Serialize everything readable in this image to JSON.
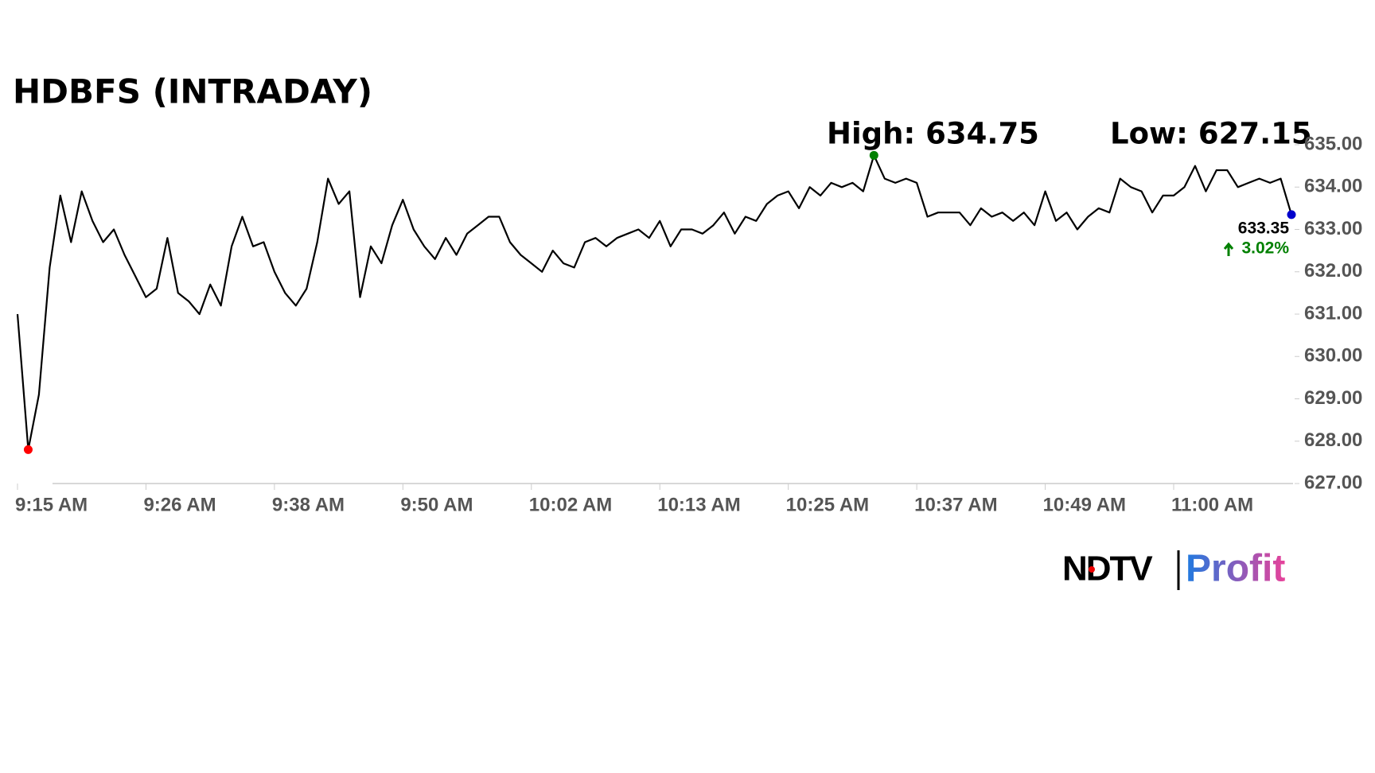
{
  "chart_data": {
    "type": "line",
    "title": "HDBFS (INTRADAY)",
    "categories": [
      "9:15 AM",
      null,
      null,
      null,
      null,
      null,
      null,
      null,
      null,
      null,
      null,
      null,
      "9:26 AM",
      null,
      null,
      null,
      null,
      null,
      null,
      null,
      null,
      null,
      null,
      null,
      "9:38 AM",
      null,
      null,
      null,
      null,
      null,
      null,
      null,
      null,
      null,
      null,
      null,
      "9:50 AM",
      null,
      null,
      null,
      null,
      null,
      null,
      null,
      null,
      null,
      null,
      null,
      "10:02 AM",
      null,
      null,
      null,
      null,
      null,
      null,
      null,
      null,
      null,
      null,
      null,
      "10:13 AM",
      null,
      null,
      null,
      null,
      null,
      null,
      null,
      null,
      null,
      null,
      null,
      "10:25 AM",
      null,
      null,
      null,
      null,
      null,
      null,
      null,
      null,
      null,
      null,
      null,
      "10:37 AM",
      null,
      null,
      null,
      null,
      null,
      null,
      null,
      null,
      null,
      null,
      null,
      "10:49 AM",
      null,
      null,
      null,
      null,
      null,
      null,
      null,
      null,
      null,
      null,
      null,
      "11:00 AM",
      null,
      null,
      null,
      null,
      null,
      null,
      null,
      null,
      null,
      null,
      null
    ],
    "values": [
      631.0,
      627.8,
      629.1,
      632.1,
      633.8,
      632.7,
      633.9,
      633.2,
      632.7,
      633.0,
      632.4,
      631.9,
      631.4,
      631.6,
      632.8,
      631.5,
      631.3,
      631.0,
      631.7,
      631.2,
      632.6,
      633.3,
      632.6,
      632.7,
      632.0,
      631.5,
      631.2,
      631.6,
      632.7,
      634.2,
      633.6,
      633.9,
      631.4,
      632.6,
      632.2,
      633.1,
      633.7,
      633.0,
      632.6,
      632.3,
      632.8,
      632.4,
      632.9,
      633.1,
      633.3,
      633.3,
      632.7,
      632.4,
      632.2,
      632.0,
      632.5,
      632.2,
      632.1,
      632.7,
      632.8,
      632.6,
      632.8,
      632.9,
      633.0,
      632.8,
      633.2,
      632.6,
      633.0,
      633.0,
      632.9,
      633.1,
      633.4,
      632.9,
      633.3,
      633.2,
      633.6,
      633.8,
      633.9,
      633.5,
      634.0,
      633.8,
      634.1,
      634.0,
      634.1,
      633.9,
      634.75,
      634.2,
      634.1,
      634.2,
      634.1,
      633.3,
      633.4,
      633.4,
      633.4,
      633.1,
      633.5,
      633.3,
      633.4,
      633.2,
      633.4,
      633.1,
      633.9,
      633.2,
      633.4,
      633.0,
      633.3,
      633.5,
      633.4,
      634.2,
      634.0,
      633.9,
      633.4,
      633.8,
      633.8,
      634.0,
      634.5,
      633.9,
      634.4,
      634.4,
      634.0,
      634.1,
      634.2,
      634.1,
      634.2,
      633.35
    ],
    "color": "#000000",
    "high_color": "#008000",
    "low_color": "#ff0000",
    "last_color": "#0000cc",
    "ylim": [
      627,
      635
    ],
    "yticks": [
      {
        "value": 627,
        "label": "627.00"
      },
      {
        "value": 628,
        "label": "628.00"
      },
      {
        "value": 629,
        "label": "629.00"
      },
      {
        "value": 630,
        "label": "630.00"
      },
      {
        "value": 631,
        "label": "631.00"
      },
      {
        "value": 632,
        "label": "632.00"
      },
      {
        "value": 633,
        "label": "633.00"
      },
      {
        "value": 634,
        "label": "634.00"
      },
      {
        "value": 635,
        "label": "635.00"
      }
    ],
    "annotations": {
      "high": "High: 634.75",
      "low": "Low: 627.15",
      "last": "633.35",
      "change": "3.02%"
    },
    "logo": {
      "left": "NDTV",
      "right": "Profit"
    }
  }
}
